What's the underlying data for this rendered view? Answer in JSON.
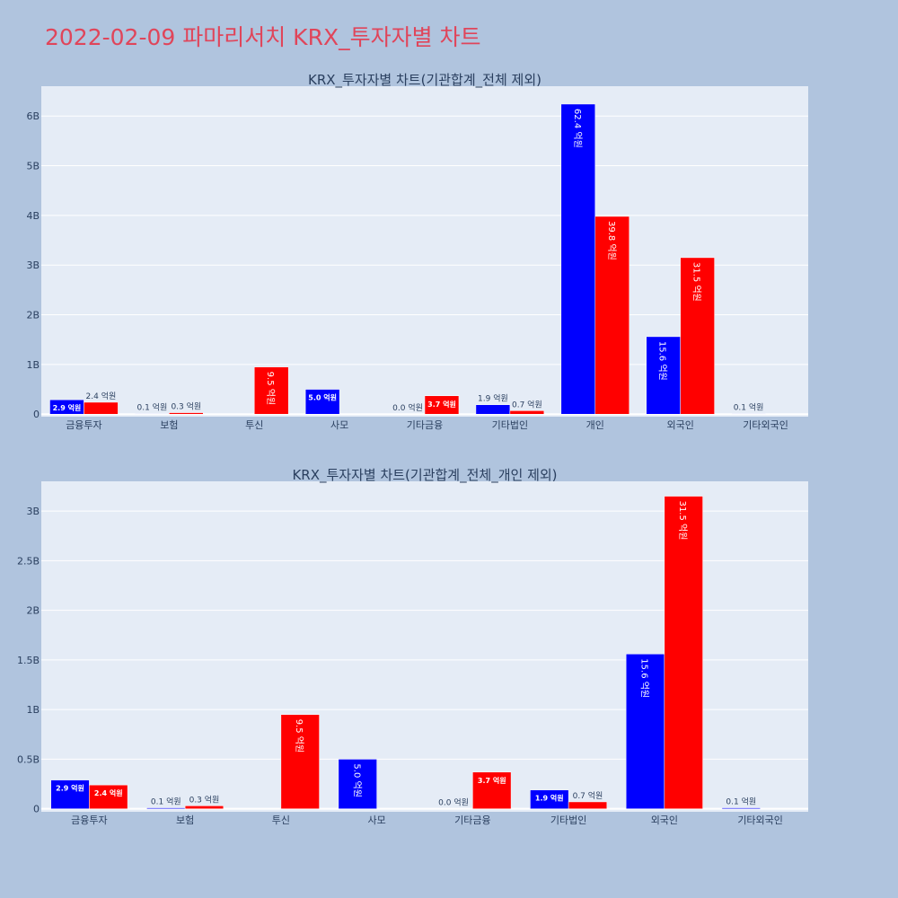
{
  "title": "2022-02-09 파마리서치 KRX_투자자별 차트",
  "colors": {
    "background": "#b0c4de",
    "plot_bg": "#e5ecf6",
    "title": "#e0455a",
    "buy": "#0000ff",
    "sell": "#ff0000",
    "text": "#2a3f5f"
  },
  "chart_data": [
    {
      "type": "bar",
      "title": "KRX_투자자별 차트(기관합계_전체 제외)",
      "categories": [
        "금융투자",
        "보험",
        "투신",
        "사모",
        "기타금융",
        "기타법인",
        "개인",
        "외국인",
        "기타외국인"
      ],
      "series": [
        {
          "color": "#0000ff",
          "values": [
            0.29,
            0.01,
            0,
            0.5,
            0.0,
            0.19,
            6.24,
            1.56,
            0.01
          ],
          "labels": [
            "2.9 억원",
            "0.1 억원",
            "",
            "5.0 억원",
            "0.0 억원",
            "1.9 억원",
            "62.4 억원",
            "15.6 억원",
            "0.1 억원"
          ]
        },
        {
          "color": "#ff0000",
          "values": [
            0.24,
            0.03,
            0.95,
            0,
            0.37,
            0.07,
            3.98,
            3.15,
            0
          ],
          "labels": [
            "2.4 억원",
            "0.3 억원",
            "9.5 억원",
            "",
            "3.7 억원",
            "0.7 억원",
            "39.8 억원",
            "31.5 억원",
            ""
          ]
        }
      ],
      "yticks": [
        0,
        1,
        2,
        3,
        4,
        5,
        6
      ],
      "ytick_labels": [
        "0",
        "1B",
        "2B",
        "3B",
        "4B",
        "5B",
        "6B"
      ],
      "ylim": [
        -0.05,
        6.6
      ]
    },
    {
      "type": "bar",
      "title": "KRX_투자자별 차트(기관합계_전체_개인 제외)",
      "categories": [
        "금융투자",
        "보험",
        "투신",
        "사모",
        "기타금융",
        "기타법인",
        "외국인",
        "기타외국인"
      ],
      "series": [
        {
          "color": "#0000ff",
          "values": [
            0.29,
            0.01,
            0,
            0.5,
            0.0,
            0.19,
            1.56,
            0.01
          ],
          "labels": [
            "2.9 억원",
            "0.1 억원",
            "",
            "5.0 억원",
            "0.0 억원",
            "1.9 억원",
            "15.6 억원",
            "0.1 억원"
          ]
        },
        {
          "color": "#ff0000",
          "values": [
            0.24,
            0.03,
            0.95,
            0,
            0.37,
            0.07,
            3.15,
            0
          ],
          "labels": [
            "2.4 억원",
            "0.3 억원",
            "9.5 억원",
            "",
            "3.7 억원",
            "0.7 억원",
            "31.5 억원",
            ""
          ]
        }
      ],
      "yticks": [
        0,
        0.5,
        1,
        1.5,
        2,
        2.5,
        3
      ],
      "ytick_labels": [
        "0",
        "0.5B",
        "1B",
        "1.5B",
        "2B",
        "2.5B",
        "3B"
      ],
      "ylim": [
        -0.03,
        3.3
      ]
    }
  ]
}
